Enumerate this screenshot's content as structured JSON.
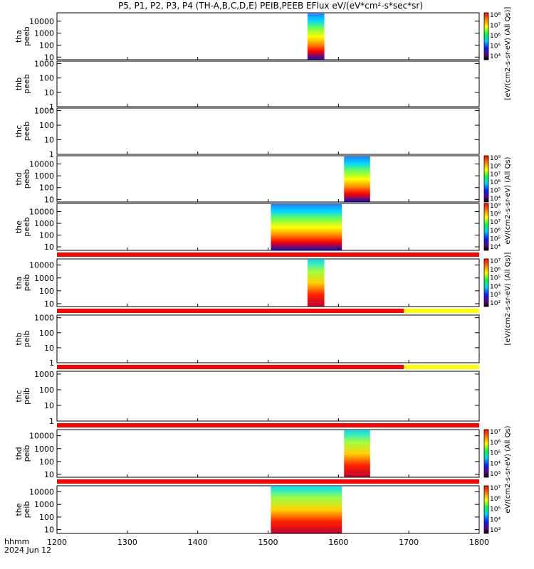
{
  "title": "P5, P1, P2, P3, P4 (TH-A,B,C,D,E) PEIB,PEEB EFlux eV/(eV*cm²-s*sec*sr)",
  "footer": {
    "line1": "hhmm",
    "line2": "2024 Jun 12"
  },
  "colorbar_labels": {
    "peeb_top": "[eV/(cm2-s-sr-eV) (All Qs)]",
    "peeb_mid": "eV/(cm2-s-sr-eV) (All Qs)",
    "peib": "[eV/(cm2-s-sr-eV) (All Qs)]",
    "peib_mid": "eV/(cm2-s-sr-eV) (All Qs)"
  },
  "chart_data": {
    "type": "heatmap",
    "x_axis": {
      "range": [
        1200,
        1800
      ],
      "ticks": [
        1200,
        1300,
        1400,
        1500,
        1600,
        1700,
        1800
      ],
      "unit": "hhmm"
    },
    "panels": [
      {
        "id": "tha-peeb",
        "label": [
          "tha",
          "peeb"
        ],
        "yticks": [
          "10",
          "100",
          "1000",
          "10000"
        ],
        "yrange": [
          6,
          50000
        ],
        "spans": [
          [
            1556,
            1580
          ]
        ],
        "cbar": {
          "labels": [
            "10⁴",
            "10⁵",
            "10⁶",
            "10⁷",
            "10⁸"
          ]
        }
      },
      {
        "id": "thb-peeb",
        "label": [
          "thb",
          "peeb"
        ],
        "yticks": [
          "1",
          "10",
          "100",
          "1000"
        ],
        "yrange": [
          1,
          1500
        ],
        "spans": []
      },
      {
        "id": "thc-peeb",
        "label": [
          "thc",
          "peeb"
        ],
        "yticks": [
          "1",
          "10",
          "100",
          "1000"
        ],
        "yrange": [
          1,
          1500
        ],
        "spans": []
      },
      {
        "id": "thd-peeb",
        "label": [
          "thd",
          "peeb"
        ],
        "yticks": [
          "10",
          "100",
          "1000",
          "10000"
        ],
        "yrange": [
          6,
          50000
        ],
        "spans": [
          [
            1608,
            1645
          ]
        ],
        "cbar": {
          "labels": [
            "10⁴",
            "10⁵",
            "10⁶",
            "10⁷",
            "10⁸",
            "10⁹"
          ]
        }
      },
      {
        "id": "the-peeb",
        "label": [
          "the",
          "peeb"
        ],
        "yticks": [
          "10",
          "100",
          "1000",
          "10000"
        ],
        "yrange": [
          5,
          50000
        ],
        "spans": [
          [
            1504,
            1605
          ]
        ],
        "cbar": {
          "labels": [
            "10⁴",
            "10⁵",
            "10⁶",
            "10⁷",
            "10⁸",
            "10⁹"
          ]
        }
      },
      {
        "id": "tha-peib",
        "label": [
          "tha",
          "peib"
        ],
        "yticks": [
          "10",
          "100",
          "1000",
          "10000"
        ],
        "yrange": [
          6,
          30000
        ],
        "spans": [
          [
            1556,
            1580
          ]
        ],
        "cbar": {
          "labels": [
            "10²",
            "10³",
            "10⁴",
            "10⁵",
            "10⁶",
            "10⁷"
          ]
        }
      },
      {
        "id": "thb-peib",
        "label": [
          "thb",
          "peib"
        ],
        "yticks": [
          "1",
          "10",
          "100",
          "1000"
        ],
        "yrange": [
          1,
          1500
        ],
        "spans": []
      },
      {
        "id": "thc-peib",
        "label": [
          "thc",
          "peib"
        ],
        "yticks": [
          "1",
          "10",
          "100",
          "1000"
        ],
        "yrange": [
          1,
          1500
        ],
        "spans": []
      },
      {
        "id": "thd-peib",
        "label": [
          "thd",
          "peib"
        ],
        "yticks": [
          "10",
          "100",
          "1000",
          "10000"
        ],
        "yrange": [
          6,
          30000
        ],
        "spans": [
          [
            1608,
            1645
          ]
        ],
        "cbar": {
          "labels": [
            "10³",
            "10⁴",
            "10⁵",
            "10⁶",
            "10⁷"
          ]
        }
      },
      {
        "id": "the-peib",
        "label": [
          "the",
          "peib"
        ],
        "yticks": [
          "10",
          "100",
          "1000",
          "10000"
        ],
        "yrange": [
          5,
          30000
        ],
        "spans": [
          [
            1504,
            1605
          ]
        ],
        "cbar": {
          "labels": [
            "10³",
            "10⁴",
            "10⁵",
            "10⁶",
            "10⁷"
          ]
        }
      }
    ],
    "mode_bars": [
      {
        "after": "the-peeb",
        "segments": [
          {
            "from": 1200,
            "to": 1800,
            "color": "#ff0000"
          }
        ]
      },
      {
        "after": "tha-peib",
        "segments": [
          {
            "from": 1200,
            "to": 1693,
            "color": "#ff0000"
          },
          {
            "from": 1693,
            "to": 1800,
            "color": "#ffff00"
          }
        ]
      },
      {
        "after": "thb-peib",
        "segments": [
          {
            "from": 1200,
            "to": 1693,
            "color": "#ff0000"
          },
          {
            "from": 1693,
            "to": 1800,
            "color": "#ffff00"
          }
        ]
      },
      {
        "after": "thc-peib",
        "segments": [
          {
            "from": 1200,
            "to": 1800,
            "color": "#ff0000"
          }
        ]
      },
      {
        "after": "thd-peib",
        "segments": [
          {
            "from": 1200,
            "to": 1800,
            "color": "#ff0000"
          }
        ]
      }
    ]
  }
}
